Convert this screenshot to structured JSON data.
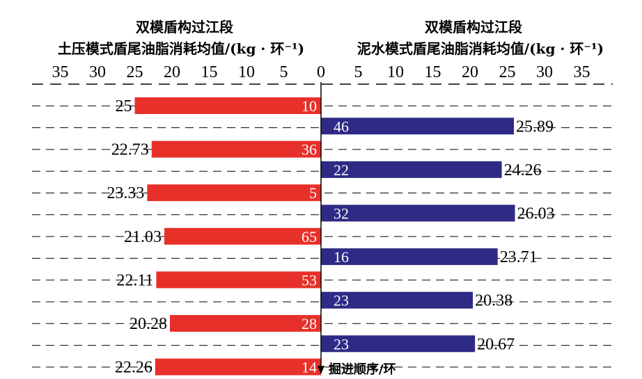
{
  "chart_data": {
    "type": "bar",
    "left": {
      "title_line1": "双模盾构过江段",
      "title_line2": "土压模式盾尾油脂消耗均值/(kg · 环⁻¹)",
      "color": "#e8302a",
      "bars": [
        {
          "value": 25,
          "inner_label": "10"
        },
        {
          "value": 22.73,
          "inner_label": "36"
        },
        {
          "value": 23.33,
          "inner_label": "5"
        },
        {
          "value": 21.03,
          "inner_label": "65"
        },
        {
          "value": 22.11,
          "inner_label": "53"
        },
        {
          "value": 20.28,
          "inner_label": "28"
        },
        {
          "value": 22.26,
          "inner_label": "14"
        }
      ]
    },
    "right": {
      "title_line1": "双模盾构过江段",
      "title_line2": "泥水模式盾尾油脂消耗均值/(kg · 环⁻¹)",
      "color": "#2e2a85",
      "bars": [
        {
          "value": 25.89,
          "inner_label": "46"
        },
        {
          "value": 24.26,
          "inner_label": "22"
        },
        {
          "value": 26.03,
          "inner_label": "32"
        },
        {
          "value": 23.71,
          "inner_label": "16"
        },
        {
          "value": 20.38,
          "inner_label": "23"
        },
        {
          "value": 20.67,
          "inner_label": "23"
        }
      ]
    },
    "x_ticks": [
      35,
      30,
      25,
      20,
      15,
      10,
      5,
      0,
      5,
      10,
      15,
      20,
      25,
      30,
      35
    ],
    "xlim": [
      0,
      35
    ],
    "grid": "dashed horizontal",
    "axis_note": "掘进顺序/环"
  }
}
